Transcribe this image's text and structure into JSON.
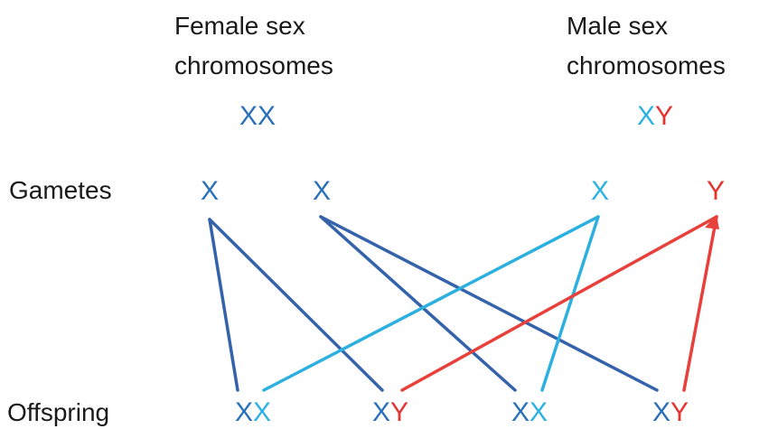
{
  "female": {
    "label_lines": [
      "Female sex",
      "chromosomes"
    ],
    "genotype": [
      "X",
      "X"
    ]
  },
  "male": {
    "label_lines": [
      "Male sex",
      "chromosomes"
    ],
    "genotype": [
      "X",
      "Y"
    ]
  },
  "gametes": {
    "label": "Gametes",
    "items": [
      "X",
      "X",
      "X",
      "Y"
    ]
  },
  "offspring": {
    "label": "Offspring",
    "items": [
      [
        "X",
        "X"
      ],
      [
        "X",
        "Y"
      ],
      [
        "X",
        "X"
      ],
      [
        "X",
        "Y"
      ]
    ]
  }
}
